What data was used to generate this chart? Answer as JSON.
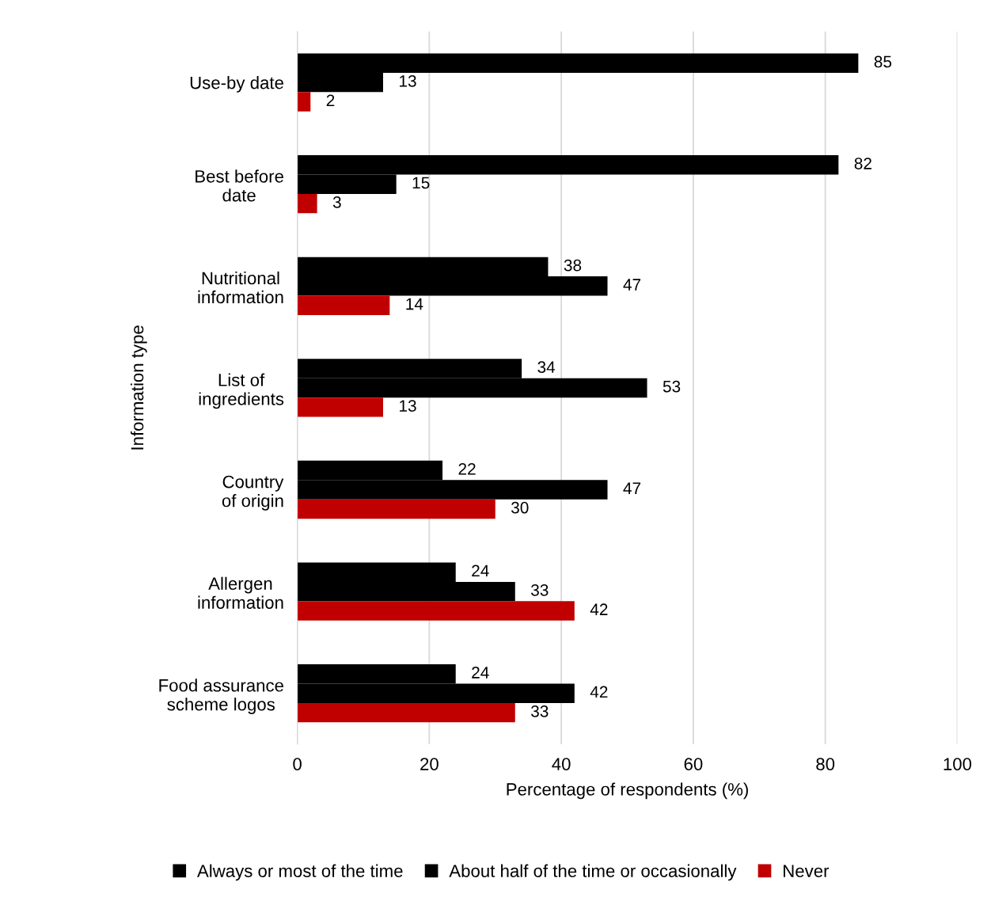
{
  "chart_data": {
    "type": "bar",
    "orientation": "horizontal",
    "categories": [
      "Use-by date",
      "Best before\ndate",
      "Nutritional\ninformation",
      "List of\ningredients",
      "Country\nof origin",
      "Allergen\ninformation",
      "Food assurance\nscheme logos"
    ],
    "series": [
      {
        "name": "Always or most of the time",
        "color": "#000000",
        "values": [
          85,
          82,
          38,
          34,
          22,
          24,
          24
        ]
      },
      {
        "name": "About half of the time or occasionally",
        "color": "#000000",
        "values": [
          13,
          15,
          47,
          53,
          47,
          33,
          42
        ]
      },
      {
        "name": "Never",
        "color": "#c00000",
        "values": [
          2,
          3,
          14,
          13,
          30,
          42,
          33
        ]
      }
    ],
    "xlabel": "Percentage of respondents (%)",
    "ylabel": "Information type",
    "xlim": [
      0,
      100
    ],
    "xticks": [
      0,
      20,
      40,
      60,
      80,
      100
    ],
    "grid": "x",
    "legend": "bottom",
    "data_labels": true
  }
}
